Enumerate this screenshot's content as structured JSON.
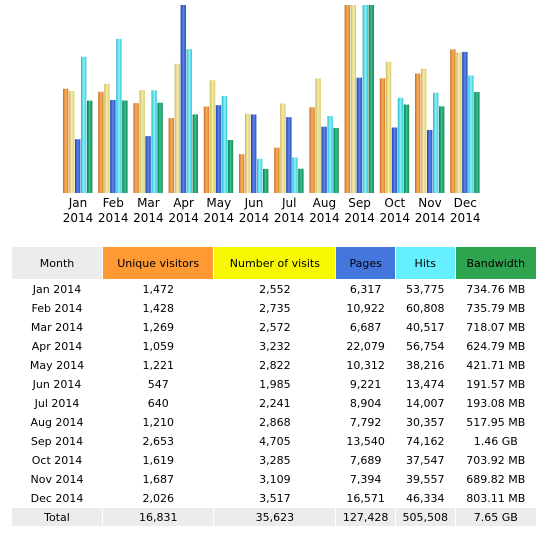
{
  "chart_data": {
    "type": "bar",
    "categories": [
      "Jan 2014",
      "Feb 2014",
      "Mar 2014",
      "Apr 2014",
      "May 2014",
      "Jun 2014",
      "Jul 2014",
      "Aug 2014",
      "Sep 2014",
      "Oct 2014",
      "Nov 2014",
      "Dec 2014"
    ],
    "xlabels": [
      [
        "Jan",
        "2014"
      ],
      [
        "Feb",
        "2014"
      ],
      [
        "Mar",
        "2014"
      ],
      [
        "Apr",
        "2014"
      ],
      [
        "May",
        "2014"
      ],
      [
        "Jun",
        "2014"
      ],
      [
        "Jul",
        "2014"
      ],
      [
        "Aug",
        "2014"
      ],
      [
        "Sep",
        "2014"
      ],
      [
        "Oct",
        "2014"
      ],
      [
        "Nov",
        "2014"
      ],
      [
        "Dec",
        "2014"
      ]
    ],
    "series": [
      {
        "name": "Unique visitors",
        "color": "#f09a3e",
        "values": [
          1472,
          1428,
          1269,
          1059,
          1221,
          547,
          640,
          1210,
          2653,
          1619,
          1687,
          2026
        ]
      },
      {
        "name": "Number of visits",
        "color": "#e8dc80",
        "values": [
          2552,
          2735,
          2572,
          3232,
          2822,
          1985,
          2241,
          2868,
          4705,
          3285,
          3109,
          3517
        ]
      },
      {
        "name": "Pages",
        "color": "#3b63d4",
        "values": [
          6317,
          10922,
          6687,
          22079,
          10312,
          9221,
          8904,
          7792,
          13540,
          7689,
          7394,
          16571
        ]
      },
      {
        "name": "Hits",
        "color": "#4fdde8",
        "values": [
          53775,
          60808,
          40517,
          56754,
          38216,
          13474,
          14007,
          30357,
          74162,
          37547,
          39557,
          46334
        ]
      },
      {
        "name": "Bandwidth",
        "color": "#1f9a6a",
        "values": [
          734.76,
          735.79,
          718.07,
          624.79,
          421.71,
          191.57,
          193.08,
          517.95,
          1495.04,
          703.92,
          689.82,
          803.11
        ]
      }
    ],
    "legend": "none",
    "grid": false
  },
  "table": {
    "headers": {
      "month": "Month",
      "unique": "Unique visitors",
      "visits": "Number of visits",
      "pages": "Pages",
      "hits": "Hits",
      "bandwidth": "Bandwidth"
    },
    "rows": [
      [
        "Jan 2014",
        "1,472",
        "2,552",
        "6,317",
        "53,775",
        "734.76 MB"
      ],
      [
        "Feb 2014",
        "1,428",
        "2,735",
        "10,922",
        "60,808",
        "735.79 MB"
      ],
      [
        "Mar 2014",
        "1,269",
        "2,572",
        "6,687",
        "40,517",
        "718.07 MB"
      ],
      [
        "Apr 2014",
        "1,059",
        "3,232",
        "22,079",
        "56,754",
        "624.79 MB"
      ],
      [
        "May 2014",
        "1,221",
        "2,822",
        "10,312",
        "38,216",
        "421.71 MB"
      ],
      [
        "Jun 2014",
        "547",
        "1,985",
        "9,221",
        "13,474",
        "191.57 MB"
      ],
      [
        "Jul 2014",
        "640",
        "2,241",
        "8,904",
        "14,007",
        "193.08 MB"
      ],
      [
        "Aug 2014",
        "1,210",
        "2,868",
        "7,792",
        "30,357",
        "517.95 MB"
      ],
      [
        "Sep 2014",
        "2,653",
        "4,705",
        "13,540",
        "74,162",
        "1.46 GB"
      ],
      [
        "Oct 2014",
        "1,619",
        "3,285",
        "7,689",
        "37,547",
        "703.92 MB"
      ],
      [
        "Nov 2014",
        "1,687",
        "3,109",
        "7,394",
        "39,557",
        "689.82 MB"
      ],
      [
        "Dec 2014",
        "2,026",
        "3,517",
        "16,571",
        "46,334",
        "803.11 MB"
      ]
    ],
    "total": [
      "Total",
      "16,831",
      "35,623",
      "127,428",
      "505,508",
      "7.65 GB"
    ]
  }
}
